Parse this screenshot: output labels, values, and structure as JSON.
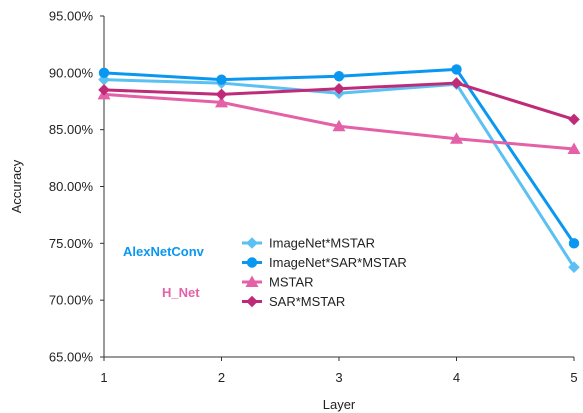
{
  "chart_data": {
    "type": "line",
    "title": "",
    "xlabel": "Layer",
    "ylabel": "Accuracy",
    "x": [
      1,
      2,
      3,
      4,
      5
    ],
    "x_tick_labels": [
      "1",
      "2",
      "3",
      "4",
      "5"
    ],
    "xlim": [
      1,
      5
    ],
    "ylim": [
      0.65,
      0.95
    ],
    "y_tick_values": [
      0.65,
      0.7,
      0.75,
      0.8,
      0.85,
      0.9,
      0.95
    ],
    "y_tick_labels": [
      "65.00%",
      "70.00%",
      "75.00%",
      "80.00%",
      "85.00%",
      "90.00%",
      "95.00%"
    ],
    "grid": false,
    "legend_position": "lower-center",
    "series": [
      {
        "name": "ImageNet*MSTAR",
        "values": [
          0.894,
          0.891,
          0.882,
          0.89,
          0.729
        ],
        "color": "#5bc0f2",
        "marker": "diamond"
      },
      {
        "name": "ImageNet*SAR*MSTAR",
        "values": [
          0.9,
          0.894,
          0.897,
          0.903,
          0.75
        ],
        "color": "#0a97f0",
        "marker": "circle"
      },
      {
        "name": "MSTAR",
        "values": [
          0.881,
          0.874,
          0.853,
          0.842,
          0.833
        ],
        "color": "#e461a8",
        "marker": "triangle"
      },
      {
        "name": "SAR*MSTAR",
        "values": [
          0.885,
          0.881,
          0.886,
          0.891,
          0.859
        ],
        "color": "#bf2b78",
        "marker": "diamond"
      }
    ],
    "annotations": [
      {
        "text": "AlexNetConv",
        "color": "#0a97f0"
      },
      {
        "text": "H_Net",
        "color": "#e461a8"
      }
    ]
  }
}
